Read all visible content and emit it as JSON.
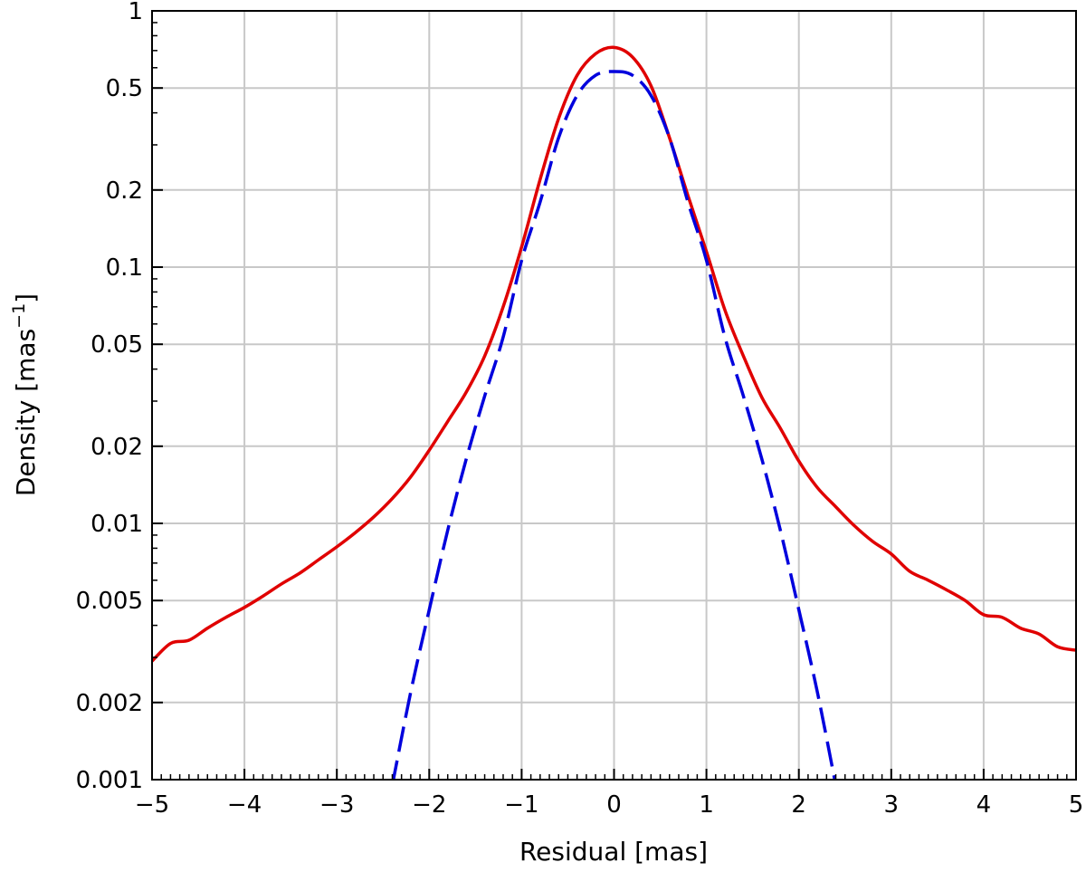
{
  "chart_data": {
    "type": "line",
    "xlabel": "Residual [mas]",
    "ylabel": "Density [mas",
    "ylabel_sup": "−1",
    "ylabel_close": "]",
    "xlim": [
      -5,
      5
    ],
    "ylim": [
      0.001,
      1
    ],
    "yscale": "log",
    "grid": true,
    "x_ticks": [
      {
        "value": -5,
        "label": "−5"
      },
      {
        "value": -4,
        "label": "−4"
      },
      {
        "value": -3,
        "label": "−3"
      },
      {
        "value": -2,
        "label": "−2"
      },
      {
        "value": -1,
        "label": "−1"
      },
      {
        "value": 0,
        "label": "0"
      },
      {
        "value": 1,
        "label": "1"
      },
      {
        "value": 2,
        "label": "2"
      },
      {
        "value": 3,
        "label": "3"
      },
      {
        "value": 4,
        "label": "4"
      },
      {
        "value": 5,
        "label": "5"
      }
    ],
    "y_ticks": [
      {
        "value": 1,
        "label": "1"
      },
      {
        "value": 0.5,
        "label": "0.5"
      },
      {
        "value": 0.2,
        "label": "0.2"
      },
      {
        "value": 0.1,
        "label": "0.1"
      },
      {
        "value": 0.05,
        "label": "0.05"
      },
      {
        "value": 0.02,
        "label": "0.02"
      },
      {
        "value": 0.01,
        "label": "0.01"
      },
      {
        "value": 0.005,
        "label": "0.005"
      },
      {
        "value": 0.002,
        "label": "0.002"
      },
      {
        "value": 0.001,
        "label": "0.001"
      }
    ],
    "series": [
      {
        "color": "#e00000",
        "style": "solid",
        "x": [
          -5,
          -4.8,
          -4.6,
          -4.4,
          -4.2,
          -4.0,
          -3.8,
          -3.6,
          -3.4,
          -3.2,
          -3.0,
          -2.8,
          -2.6,
          -2.4,
          -2.2,
          -2.0,
          -1.8,
          -1.6,
          -1.4,
          -1.2,
          -1.0,
          -0.8,
          -0.6,
          -0.4,
          -0.2,
          0,
          0.2,
          0.4,
          0.6,
          0.8,
          1.0,
          1.2,
          1.4,
          1.6,
          1.8,
          2.0,
          2.2,
          2.4,
          2.6,
          2.8,
          3.0,
          3.2,
          3.4,
          3.6,
          3.8,
          4.0,
          4.2,
          4.4,
          4.6,
          4.8,
          5.0
        ],
        "y": [
          0.0029,
          0.0034,
          0.0035,
          0.0039,
          0.0043,
          0.0047,
          0.0052,
          0.0058,
          0.0064,
          0.0072,
          0.0081,
          0.0092,
          0.0106,
          0.0125,
          0.0152,
          0.0193,
          0.025,
          0.0325,
          0.045,
          0.07,
          0.12,
          0.22,
          0.38,
          0.56,
          0.68,
          0.72,
          0.66,
          0.51,
          0.32,
          0.19,
          0.115,
          0.068,
          0.045,
          0.031,
          0.0235,
          0.0175,
          0.0138,
          0.0116,
          0.0098,
          0.0085,
          0.0076,
          0.0065,
          0.006,
          0.0055,
          0.005,
          0.0044,
          0.0043,
          0.0039,
          0.0037,
          0.0033,
          0.0032
        ]
      },
      {
        "color": "#0000dd",
        "style": "dashed",
        "x": [
          -2.4,
          -2.2,
          -2.0,
          -1.8,
          -1.6,
          -1.4,
          -1.2,
          -1.0,
          -0.8,
          -0.6,
          -0.4,
          -0.2,
          0,
          0.2,
          0.4,
          0.6,
          0.8,
          1.0,
          1.2,
          1.4,
          1.6,
          1.8,
          2.0,
          2.2,
          2.4
        ],
        "y": [
          0.00095,
          0.0022,
          0.0046,
          0.0094,
          0.0178,
          0.0314,
          0.0533,
          0.1063,
          0.1794,
          0.3195,
          0.4676,
          0.5604,
          0.58,
          0.5604,
          0.4676,
          0.3195,
          0.1794,
          0.1063,
          0.0533,
          0.0314,
          0.0178,
          0.0094,
          0.0046,
          0.0022,
          0.00095
        ]
      }
    ]
  }
}
